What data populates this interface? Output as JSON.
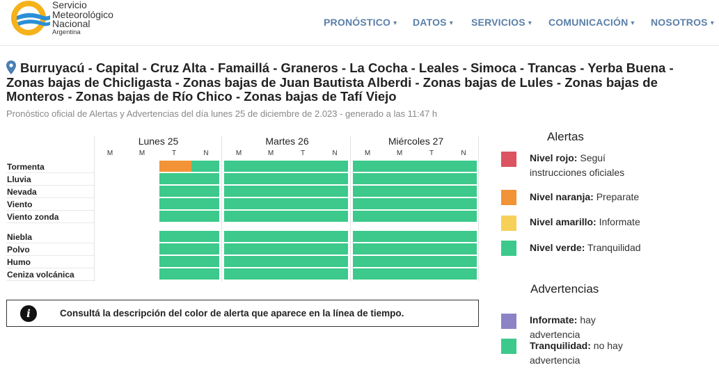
{
  "header": {
    "logo": {
      "line1": "Servicio",
      "line2": "Meteorológico",
      "line3": "Nacional",
      "line4": "Argentina"
    },
    "nav": [
      {
        "label": "PRONÓSTICO",
        "caret": "▾"
      },
      {
        "label": "DATOS",
        "caret": "▾"
      },
      {
        "label": "SERVICIOS",
        "caret": "▾"
      },
      {
        "label": "COMUNICACIÓN",
        "caret": "▾"
      },
      {
        "label": "NOSOTROS",
        "caret": "▾"
      }
    ],
    "accent_color": "#5a7fa8"
  },
  "location": {
    "icon": "map-pin-icon",
    "title": "Burruyacú - Capital - Cruz Alta - Famaillá - Graneros - La Cocha - Leales - Simoca - Trancas - Yerba Buena - Zonas bajas de Chicligasta - Zonas bajas de Juan Bautista Alberdi - Zonas bajas de Lules - Zonas bajas de Monteros - Zonas bajas de Río Chico - Zonas bajas de Tafí Viejo",
    "subtitle": "Pronóstico oficial de Alertas y Advertencias del día lunes 25 de diciembre de 2.023 - generado a las 11:47 h"
  },
  "timeline": {
    "days": [
      {
        "label": "Lunes 25",
        "slots": [
          "M",
          "M",
          "T",
          "N"
        ]
      },
      {
        "label": "Martes 26",
        "slots": [
          "M",
          "M",
          "T",
          "N"
        ]
      },
      {
        "label": "Miércoles 27",
        "slots": [
          "M",
          "M",
          "T",
          "N"
        ]
      }
    ],
    "group1": [
      {
        "label": "Tormenta",
        "levels": [
          "none",
          "none",
          "naranja",
          "verde",
          "verde",
          "verde",
          "verde",
          "verde",
          "verde",
          "verde",
          "verde",
          "verde"
        ]
      },
      {
        "label": "Lluvia",
        "levels": [
          "none",
          "none",
          "verde",
          "verde",
          "verde",
          "verde",
          "verde",
          "verde",
          "verde",
          "verde",
          "verde",
          "verde"
        ]
      },
      {
        "label": "Nevada",
        "levels": [
          "none",
          "none",
          "verde",
          "verde",
          "verde",
          "verde",
          "verde",
          "verde",
          "verde",
          "verde",
          "verde",
          "verde"
        ]
      },
      {
        "label": "Viento",
        "levels": [
          "none",
          "none",
          "verde",
          "verde",
          "verde",
          "verde",
          "verde",
          "verde",
          "verde",
          "verde",
          "verde",
          "verde"
        ]
      },
      {
        "label": "Viento zonda",
        "levels": [
          "none",
          "none",
          "verde",
          "verde",
          "verde",
          "verde",
          "verde",
          "verde",
          "verde",
          "verde",
          "verde",
          "verde"
        ]
      }
    ],
    "group2": [
      {
        "label": "Niebla",
        "levels": [
          "none",
          "none",
          "verde",
          "verde",
          "verde",
          "verde",
          "verde",
          "verde",
          "verde",
          "verde",
          "verde",
          "verde"
        ]
      },
      {
        "label": "Polvo",
        "levels": [
          "none",
          "none",
          "verde",
          "verde",
          "verde",
          "verde",
          "verde",
          "verde",
          "verde",
          "verde",
          "verde",
          "verde"
        ]
      },
      {
        "label": "Humo",
        "levels": [
          "none",
          "none",
          "verde",
          "verde",
          "verde",
          "verde",
          "verde",
          "verde",
          "verde",
          "verde",
          "verde",
          "verde"
        ]
      },
      {
        "label": "Ceniza volcánica",
        "levels": [
          "none",
          "none",
          "verde",
          "verde",
          "verde",
          "verde",
          "verde",
          "verde",
          "verde",
          "verde",
          "verde",
          "verde"
        ]
      }
    ]
  },
  "info_box": {
    "icon": "info-icon",
    "icon_glyph": "i",
    "text": "Consultá la descripción del color de alerta que aparece en la línea de tiempo."
  },
  "alertas": {
    "title": "Alertas",
    "items": [
      {
        "name": "Nivel rojo:",
        "desc": "Seguí instrucciones oficiales",
        "color": "#dc5361"
      },
      {
        "name": "Nivel naranja:",
        "desc": "Preparate",
        "color": "#f29338"
      },
      {
        "name": "Nivel amarillo:",
        "desc": "Informate",
        "color": "#f7d05a"
      },
      {
        "name": "Nivel verde:",
        "desc": "Tranquilidad",
        "color": "#3cc98b"
      }
    ]
  },
  "advertencias": {
    "title": "Advertencias",
    "items": [
      {
        "name": "Informate:",
        "desc": "hay advertencia",
        "color": "#8c83c6"
      },
      {
        "name": "Tranquilidad:",
        "desc": "no hay advertencia",
        "color": "#3cc98b"
      }
    ]
  },
  "level_colors": {
    "verde": "#3cc98b",
    "naranja": "#f29338",
    "amarillo": "#f7d05a",
    "rojo": "#dc5361"
  }
}
